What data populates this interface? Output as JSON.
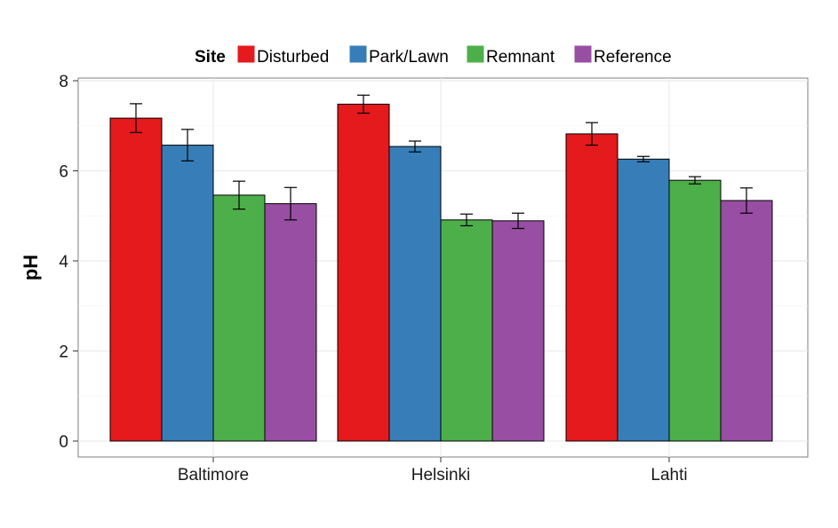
{
  "chart_data": {
    "type": "bar",
    "title": "",
    "xlabel": "",
    "ylabel": "pH",
    "ylim": [
      0,
      8.4
    ],
    "yticks": [
      0,
      2,
      4,
      6,
      8
    ],
    "grid": true,
    "legend_position": "top",
    "legend_title": "Site",
    "categories": [
      "Baltimore",
      "Helsinki",
      "Lahti"
    ],
    "series": [
      {
        "name": "Disturbed",
        "color": "#e41a1c",
        "values": [
          7.17,
          7.48,
          6.82
        ],
        "error": [
          0.32,
          0.2,
          0.25
        ]
      },
      {
        "name": "Park/Lawn",
        "color": "#377eb8",
        "values": [
          6.57,
          6.54,
          6.26
        ],
        "error": [
          0.35,
          0.12,
          0.06
        ]
      },
      {
        "name": "Remnant",
        "color": "#4daf4a",
        "values": [
          5.46,
          4.91,
          5.79
        ],
        "error": [
          0.31,
          0.13,
          0.08
        ]
      },
      {
        "name": "Reference",
        "color": "#984ea3",
        "values": [
          5.27,
          4.89,
          5.34
        ],
        "error": [
          0.36,
          0.17,
          0.28
        ]
      }
    ]
  }
}
